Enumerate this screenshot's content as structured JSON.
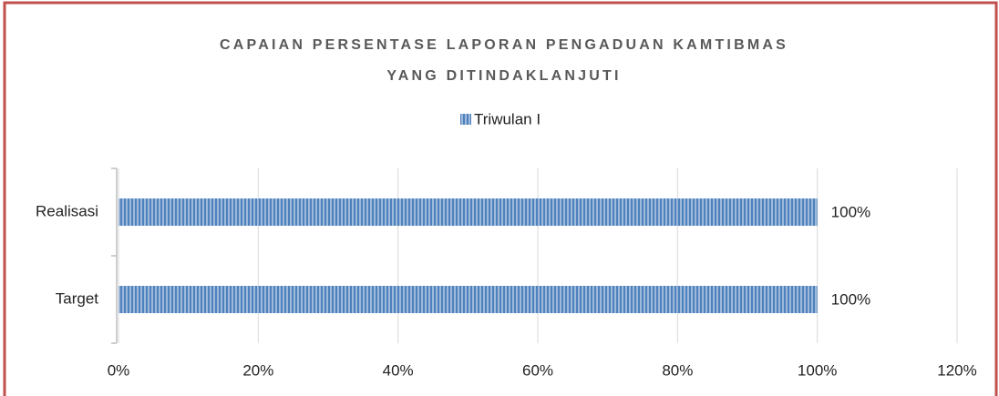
{
  "chart_data": {
    "type": "hbar",
    "title": [
      "CAPAIAN PERSENTASE LAPORAN PENGADUAN KAMTIBMAS",
      "YANG DITINDAKLANJUTI"
    ],
    "categories": [
      "Target",
      "Realisasi"
    ],
    "series": [
      {
        "name": "Triwulan I",
        "color": "#4f81bd",
        "values": [
          100,
          100
        ],
        "value_labels": [
          "100%",
          "100%"
        ]
      }
    ],
    "xlim": [
      0,
      120
    ],
    "xticks": [
      {
        "value": 0,
        "label": "0%"
      },
      {
        "value": 20,
        "label": "20%"
      },
      {
        "value": 40,
        "label": "40%"
      },
      {
        "value": 60,
        "label": "60%"
      },
      {
        "value": 80,
        "label": "80%"
      },
      {
        "value": 100,
        "label": "100%"
      },
      {
        "value": 120,
        "label": "120%"
      }
    ],
    "grid": true,
    "legend": "top"
  }
}
